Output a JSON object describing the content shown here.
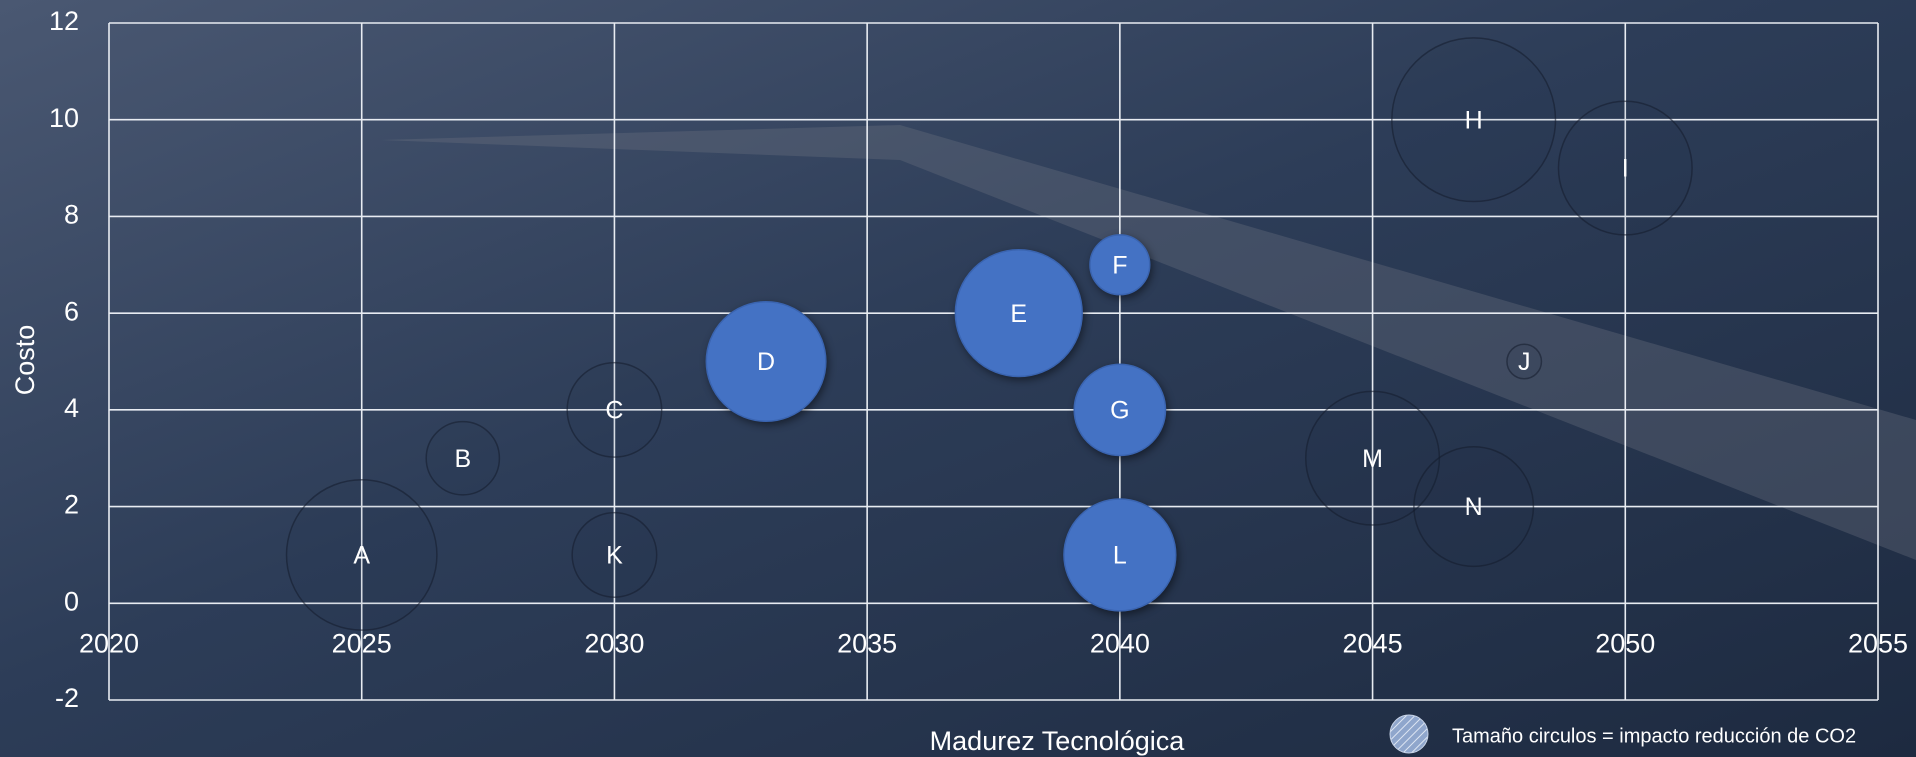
{
  "chart_data": {
    "type": "bubble",
    "x_label": "Madurez Tecnológica",
    "y_label": "Costo",
    "note": "Tamaño circulos = impacto reducción de CO2",
    "labels": [
      "A",
      "B",
      "C",
      "D",
      "E",
      "F",
      "G",
      "H",
      "I",
      "J",
      "K",
      "L",
      "M",
      "N"
    ],
    "x": [
      2025,
      2027,
      2030,
      2033,
      2038,
      2040,
      2040,
      2047,
      2050,
      2048,
      2030,
      2040,
      2045,
      2047
    ],
    "values": [
      1,
      3,
      4,
      5,
      6,
      7,
      4,
      10,
      9,
      5,
      1,
      1,
      3,
      2
    ],
    "sizes": [
      38,
      9,
      15,
      24,
      27,
      6,
      14,
      45,
      30,
      2,
      12,
      21,
      30,
      24
    ],
    "highlight": [
      false,
      false,
      false,
      true,
      true,
      true,
      true,
      false,
      false,
      false,
      false,
      true,
      false,
      false
    ],
    "color": "#4472c4",
    "xlim": [
      2020,
      2055
    ],
    "xticks": [
      2020,
      2025,
      2030,
      2035,
      2040,
      2045,
      2050,
      2055
    ],
    "ylim": [
      -2,
      12
    ],
    "yticks": [
      -2,
      0,
      2,
      4,
      6,
      8,
      10,
      12
    ],
    "grid": true
  }
}
